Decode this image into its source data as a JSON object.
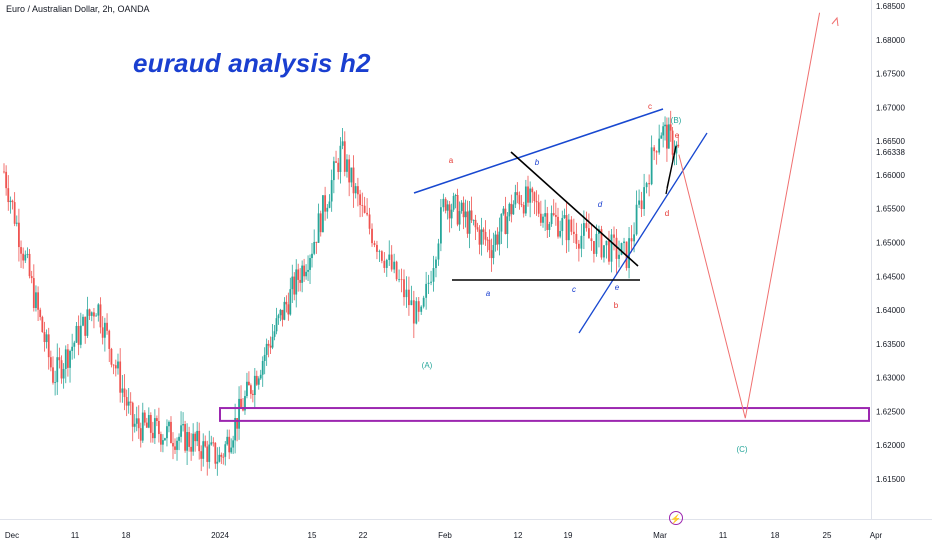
{
  "header": {
    "symbol_title": "Euro / Australian Dollar, 2h, OANDA",
    "analysis_title": "euraud analysis h2"
  },
  "colors": {
    "up_candle": "#26a69a",
    "down_candle": "#ef5350",
    "trendline_blue": "#1848d0",
    "trendline_black": "#000000",
    "projection": "#f07070",
    "zone": "#9c27b0",
    "wave_red": "#e53935",
    "wave_blue": "#1a3fd0",
    "wave_teal": "#26a69a"
  },
  "chart_data": {
    "type": "candlestick",
    "title": "Euro / Australian Dollar, 2h, OANDA",
    "ylim": [
      1.6125,
      1.686
    ],
    "y_ticks": [
      "1.68500",
      "1.68000",
      "1.67500",
      "1.67000",
      "1.66500",
      "1.66338",
      "1.66000",
      "1.65500",
      "1.65000",
      "1.64500",
      "1.64000",
      "1.63500",
      "1.63000",
      "1.62500",
      "1.62000",
      "1.61500"
    ],
    "current_price_label": "1.66338",
    "x_ticks": [
      "Dec",
      "11",
      "18",
      "2024",
      "15",
      "22",
      "Feb",
      "12",
      "19",
      "Mar",
      "11",
      "18",
      "25",
      "Apr"
    ],
    "price_path": [
      [
        "Dec",
        1.6605
      ],
      [
        "Dec 8",
        1.63
      ],
      [
        "Dec 14",
        1.641
      ],
      [
        "Dec 19",
        1.623
      ],
      [
        "Dec 27",
        1.621
      ],
      [
        "2024",
        1.618
      ],
      [
        "Jan 8",
        1.634
      ],
      [
        "Jan 15",
        1.6495
      ],
      [
        "Jan 19",
        1.6635
      ],
      [
        "Jan 22",
        1.654
      ],
      [
        "Jan 29",
        1.638
      ],
      [
        "Feb",
        1.6565
      ],
      [
        "Feb 8",
        1.6495
      ],
      [
        "Feb 12",
        1.657
      ],
      [
        "Feb 19",
        1.652
      ],
      [
        "Feb 26",
        1.648
      ],
      [
        "Mar",
        1.667
      ],
      [
        "Mar 4",
        1.6634
      ]
    ],
    "wave_labels": [
      {
        "text": "a",
        "color": "red"
      },
      {
        "text": "b",
        "color": "blue"
      },
      {
        "text": "c",
        "color": "red"
      },
      {
        "text": "(B)",
        "color": "teal"
      },
      {
        "text": "e",
        "color": "red"
      },
      {
        "text": "d",
        "color": "blue"
      },
      {
        "text": "d",
        "color": "red"
      },
      {
        "text": "a",
        "color": "blue"
      },
      {
        "text": "c",
        "color": "blue"
      },
      {
        "text": "e",
        "color": "blue"
      },
      {
        "text": "b",
        "color": "red"
      },
      {
        "text": "(A)",
        "color": "teal"
      },
      {
        "text": "(C)",
        "color": "teal"
      }
    ],
    "zone_range": [
      1.6236,
      1.6255
    ],
    "projection_path": [
      [
        "Mar 4",
        1.663
      ],
      [
        "Mar 14",
        1.624
      ],
      [
        "Mar 24",
        1.684
      ]
    ]
  }
}
